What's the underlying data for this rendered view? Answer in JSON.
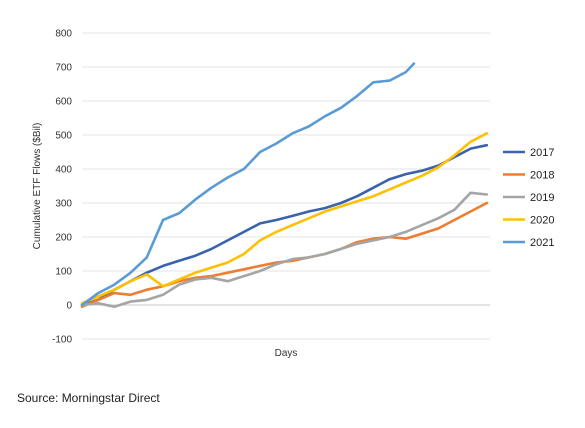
{
  "chart_data": {
    "type": "line",
    "xlabel": "Days",
    "ylabel": "Cumulative ETF Flows ($Bil)",
    "ylim": [
      -100,
      800
    ],
    "yticks": [
      -100,
      0,
      100,
      200,
      300,
      400,
      500,
      600,
      700,
      800
    ],
    "grid": true,
    "legend_position": "right",
    "x_range": [
      0,
      252
    ],
    "series": [
      {
        "name": "2017",
        "color": "#3a63ad",
        "x": [
          0,
          10,
          20,
          30,
          40,
          50,
          60,
          70,
          80,
          90,
          100,
          110,
          120,
          130,
          140,
          150,
          160,
          170,
          180,
          190,
          200,
          210,
          220,
          230,
          240,
          250
        ],
        "y": [
          0,
          15,
          45,
          70,
          95,
          115,
          130,
          145,
          165,
          190,
          215,
          240,
          250,
          262,
          275,
          285,
          300,
          320,
          345,
          370,
          385,
          395,
          410,
          435,
          460,
          470
        ]
      },
      {
        "name": "2018",
        "color": "#ed7d31",
        "x": [
          0,
          10,
          20,
          30,
          40,
          50,
          60,
          70,
          80,
          90,
          100,
          110,
          120,
          130,
          140,
          150,
          160,
          170,
          180,
          190,
          200,
          210,
          220,
          230,
          240,
          250
        ],
        "y": [
          -5,
          15,
          35,
          30,
          45,
          55,
          70,
          80,
          85,
          95,
          105,
          115,
          125,
          130,
          140,
          150,
          165,
          185,
          195,
          200,
          195,
          210,
          225,
          250,
          275,
          300
        ]
      },
      {
        "name": "2019",
        "color": "#a5a5a5",
        "x": [
          0,
          10,
          20,
          30,
          40,
          50,
          60,
          70,
          80,
          90,
          100,
          110,
          120,
          130,
          140,
          150,
          160,
          170,
          180,
          190,
          200,
          210,
          220,
          230,
          240,
          250
        ],
        "y": [
          0,
          5,
          -5,
          10,
          15,
          30,
          60,
          75,
          80,
          70,
          85,
          100,
          120,
          135,
          140,
          150,
          165,
          180,
          190,
          200,
          215,
          235,
          255,
          280,
          330,
          325
        ]
      },
      {
        "name": "2020",
        "color": "#ffc000",
        "x": [
          0,
          10,
          20,
          30,
          40,
          50,
          60,
          70,
          80,
          90,
          100,
          110,
          120,
          130,
          140,
          150,
          160,
          170,
          180,
          190,
          200,
          210,
          220,
          230,
          240,
          250
        ],
        "y": [
          5,
          25,
          45,
          70,
          90,
          55,
          75,
          95,
          110,
          125,
          150,
          190,
          215,
          235,
          255,
          275,
          290,
          305,
          320,
          340,
          360,
          380,
          405,
          440,
          480,
          505
        ]
      },
      {
        "name": "2021",
        "color": "#5b9bd5",
        "x": [
          0,
          10,
          20,
          30,
          40,
          50,
          60,
          70,
          80,
          90,
          100,
          110,
          120,
          130,
          140,
          150,
          160,
          170,
          180,
          190,
          200,
          205
        ],
        "y": [
          0,
          35,
          60,
          95,
          140,
          250,
          270,
          310,
          345,
          375,
          400,
          450,
          475,
          505,
          525,
          555,
          580,
          615,
          655,
          660,
          685,
          710
        ]
      }
    ]
  },
  "source_text": "Source: Morningstar Direct"
}
